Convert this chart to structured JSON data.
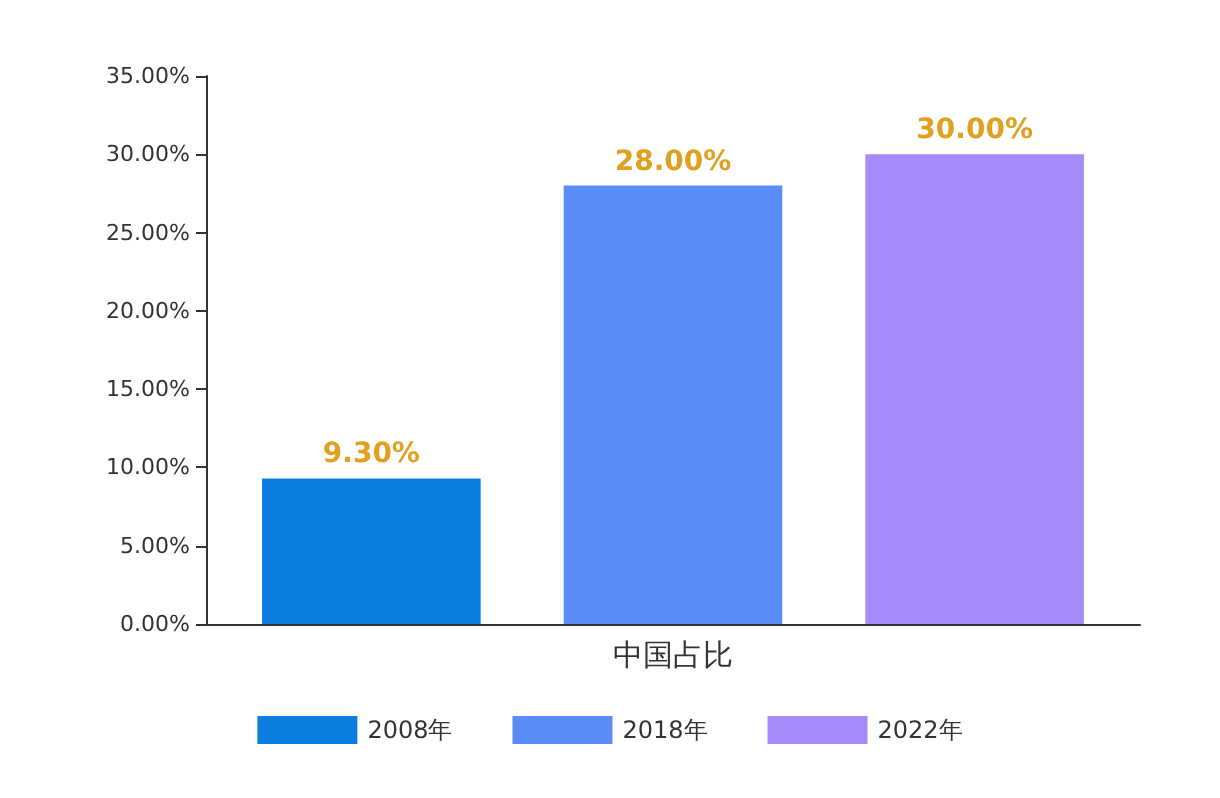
{
  "chart_data": {
    "type": "bar",
    "categories": [
      "中国占比"
    ],
    "series": [
      {
        "name": "2008年",
        "color": "#0b7ee0",
        "values": [
          9.3
        ],
        "value_labels": [
          "9.30%"
        ]
      },
      {
        "name": "2018年",
        "color": "#5b8cf7",
        "values": [
          28
        ],
        "value_labels": [
          "28.00%"
        ]
      },
      {
        "name": "2022年",
        "color": "#a48bf8",
        "values": [
          30
        ],
        "value_labels": [
          "30.00%"
        ]
      }
    ],
    "ylim": [
      0,
      35
    ],
    "yticks": [
      {
        "value": 0,
        "label": "0.00%"
      },
      {
        "value": 5,
        "label": "5.00%"
      },
      {
        "value": 10,
        "label": "10.00%"
      },
      {
        "value": 15,
        "label": "15.00%"
      },
      {
        "value": 20,
        "label": "20.00%"
      },
      {
        "value": 25,
        "label": "25.00%"
      },
      {
        "value": 30,
        "label": "30.00%"
      },
      {
        "value": 35,
        "label": "35.00%"
      }
    ],
    "grid": false,
    "legend": "bottom"
  }
}
